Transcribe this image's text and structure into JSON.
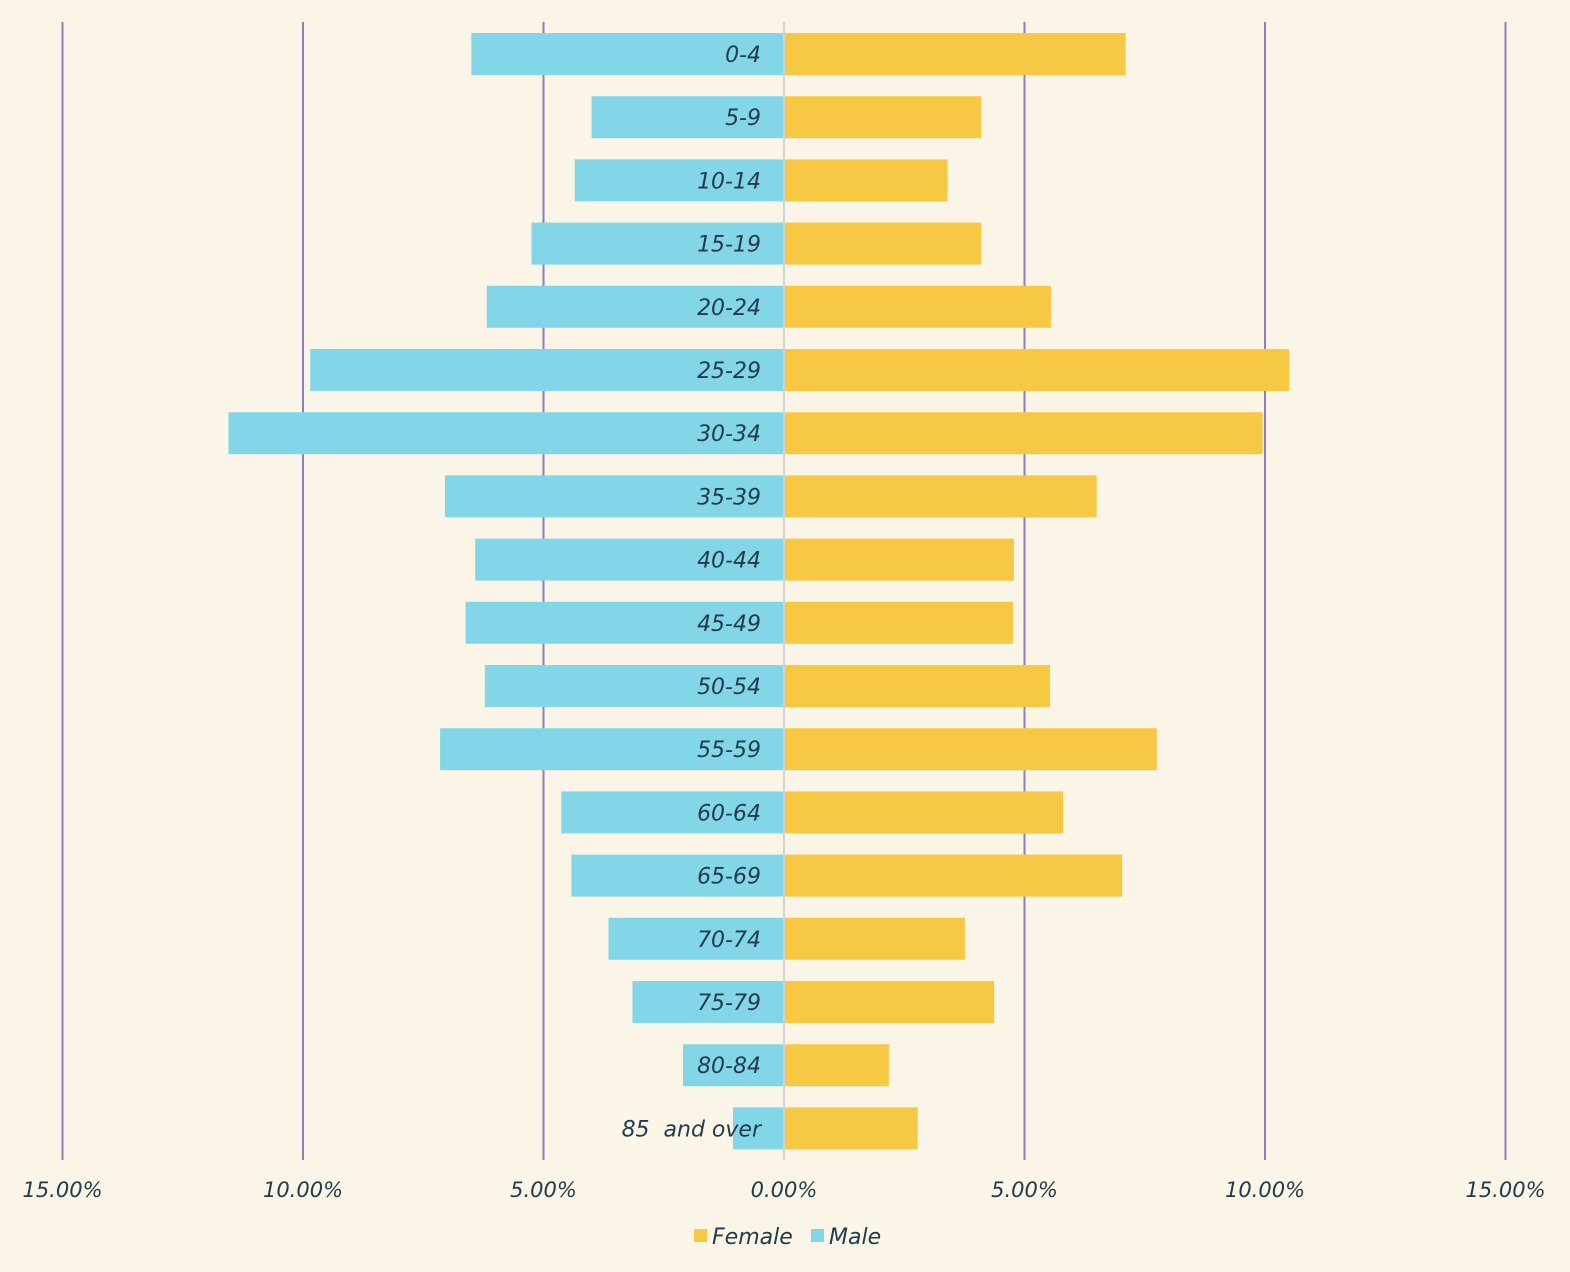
{
  "colors": {
    "background": "#faf5e6",
    "female": "#f7c844",
    "male": "#83d6e8",
    "gridline": "#8a7fbf",
    "zero_line": "#d3d3d3",
    "text": "#1f3b4d"
  },
  "chart_data": {
    "type": "bar",
    "orientation": "horizontal",
    "subtype": "population-pyramid",
    "title": "",
    "xlabel": "",
    "ylabel": "",
    "xlim": [
      -15,
      15
    ],
    "x_ticks": [
      -15,
      -10,
      -5,
      0,
      5,
      10,
      15
    ],
    "x_tick_labels": [
      "15.00%",
      "10.00%",
      "5.00%",
      "0.00%",
      "5.00%",
      "10.00%",
      "15.00%"
    ],
    "grid": true,
    "legend_position": "bottom-center",
    "categories": [
      "0-4",
      "5-9",
      "10-14",
      "15-19",
      "20-24",
      "25-29",
      "30-34",
      "35-39",
      "40-44",
      "45-49",
      "50-54",
      "55-59",
      "60-64",
      "65-69",
      "70-74",
      "75-79",
      "80-84",
      "85  and over"
    ],
    "series": [
      {
        "name": "Female",
        "side": "right",
        "values": [
          7.1,
          4.1,
          3.4,
          4.1,
          5.55,
          10.5,
          9.95,
          6.5,
          4.78,
          4.76,
          5.53,
          7.75,
          5.8,
          7.03,
          3.76,
          4.37,
          2.18,
          2.78
        ]
      },
      {
        "name": "Male",
        "side": "left",
        "values": [
          6.5,
          4.0,
          4.35,
          5.25,
          6.18,
          9.85,
          11.55,
          7.05,
          6.42,
          6.62,
          6.22,
          7.15,
          4.63,
          4.42,
          3.65,
          3.15,
          2.1,
          1.06
        ]
      }
    ],
    "legend": [
      "Female",
      "Male"
    ]
  }
}
